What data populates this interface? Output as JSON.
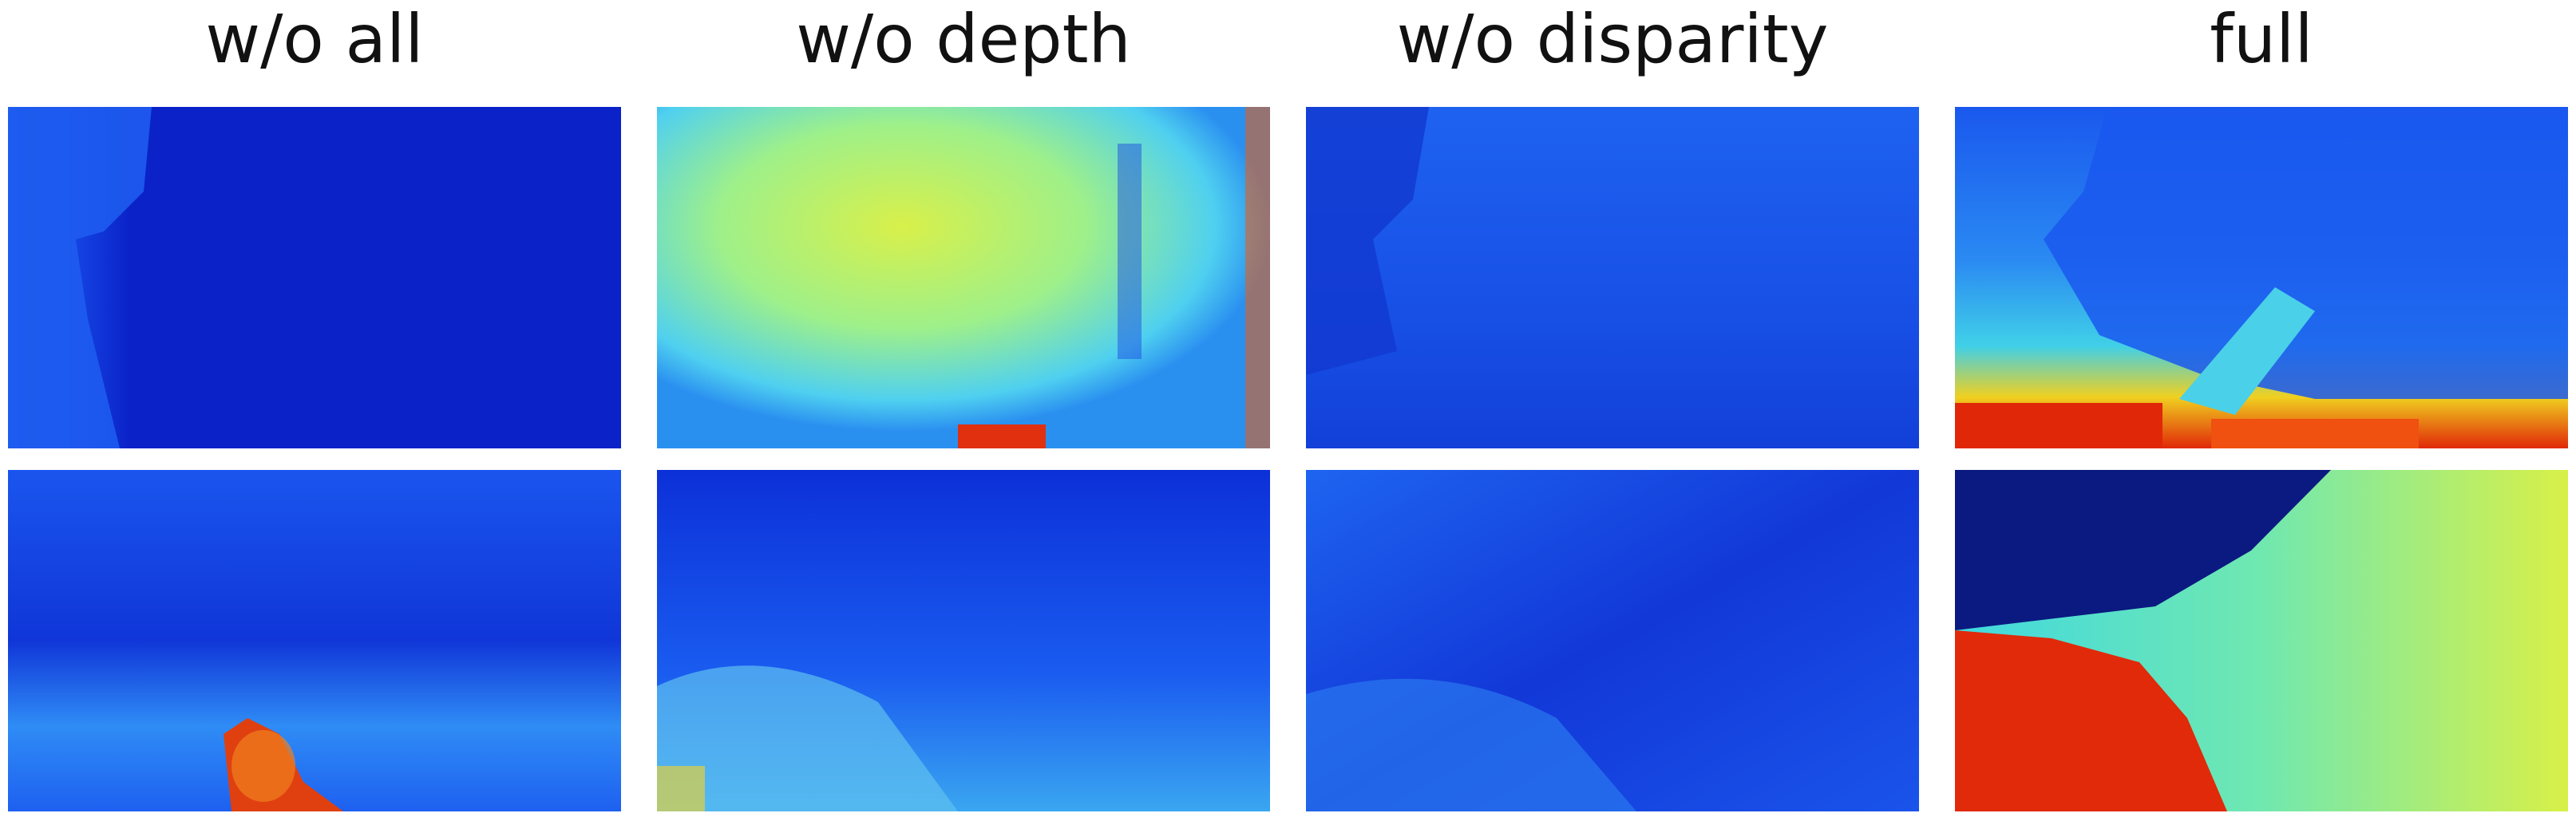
{
  "columns": [
    {
      "title": "w/o all"
    },
    {
      "title": "w/o depth"
    },
    {
      "title": "w/o disparity"
    },
    {
      "title": "full"
    }
  ]
}
